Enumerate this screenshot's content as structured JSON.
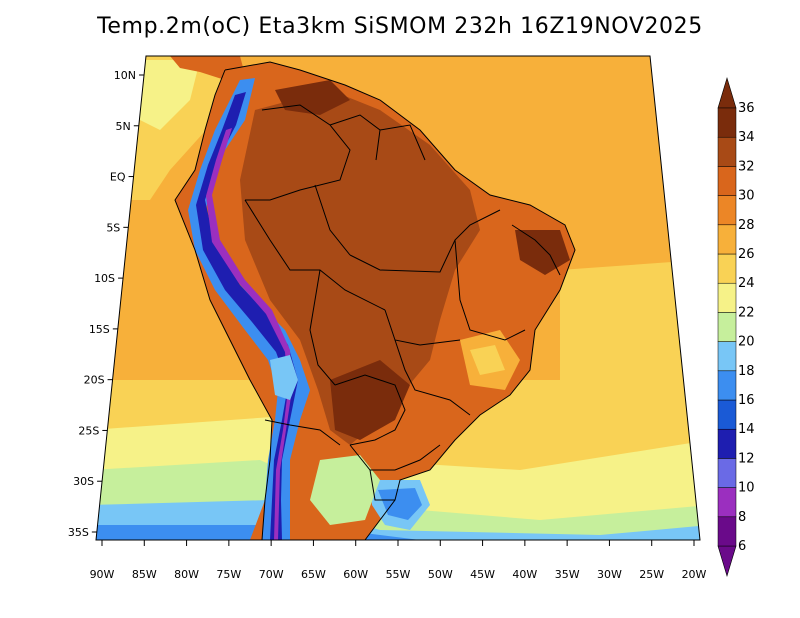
{
  "title": "Temp.2m(oC) Eta3km SiSMOM 232h 16Z19NOV2025",
  "map": {
    "lon_ticks": [
      "90W",
      "85W",
      "80W",
      "75W",
      "70W",
      "65W",
      "60W",
      "55W",
      "50W",
      "45W",
      "40W",
      "35W",
      "30W",
      "25W",
      "20W"
    ],
    "lat_ticks": [
      "10N",
      "5N",
      "EQ",
      "5S",
      "10S",
      "15S",
      "20S",
      "25S",
      "30S",
      "35S"
    ]
  },
  "colorbar": {
    "labels": [
      "6",
      "8",
      "10",
      "12",
      "14",
      "16",
      "18",
      "20",
      "22",
      "24",
      "26",
      "28",
      "30",
      "32",
      "34",
      "36"
    ],
    "colors": [
      "#6a0a8a",
      "#9b2fbf",
      "#6a6ae6",
      "#1e1eb0",
      "#1a5ad6",
      "#3c8ef0",
      "#78c6f6",
      "#c6ef9c",
      "#f6f288",
      "#f9d255",
      "#f7b03a",
      "#ec8626",
      "#d9661c",
      "#a84a16",
      "#7a2c0c"
    ]
  }
}
